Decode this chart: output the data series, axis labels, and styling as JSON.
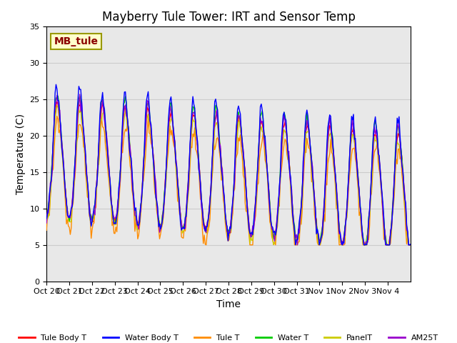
{
  "title": "Mayberry Tule Tower: IRT and Sensor Temp",
  "ylabel": "Temperature (C)",
  "xlabel": "Time",
  "annotation": "MB_tule",
  "ylim": [
    0,
    35
  ],
  "yticks": [
    0,
    5,
    10,
    15,
    20,
    25,
    30,
    35
  ],
  "xtick_labels": [
    "Oct 20",
    "Oct 21",
    "Oct 22",
    "Oct 23",
    "Oct 24",
    "Oct 25",
    "Oct 26",
    "Oct 27",
    "Oct 28",
    "Oct 29",
    "Oct 30",
    "Oct 31",
    "Nov 1",
    "Nov 2",
    "Nov 3",
    "Nov 4"
  ],
  "legend": [
    {
      "label": "Tule Body T",
      "color": "#FF0000"
    },
    {
      "label": "Water Body T",
      "color": "#0000FF"
    },
    {
      "label": "Tule T",
      "color": "#FF8C00"
    },
    {
      "label": "Water T",
      "color": "#00CC00"
    },
    {
      "label": "PanelT",
      "color": "#CCCC00"
    },
    {
      "label": "AM25T",
      "color": "#9900CC"
    }
  ],
  "grid_color": "#CCCCCC",
  "bg_color": "#E8E8E8",
  "title_fontsize": 12,
  "label_fontsize": 10
}
